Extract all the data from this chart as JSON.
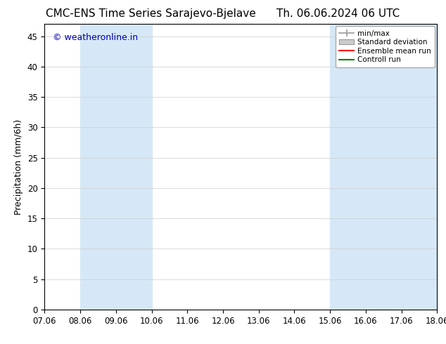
{
  "title_left": "CMC-ENS Time Series Sarajevo-Bjelave",
  "title_right": "Th. 06.06.2024 06 UTC",
  "ylabel": "Precipitation (mm/6h)",
  "watermark": "© weatheronline.in",
  "watermark_color": "#0000bb",
  "xlim_left": 7.06,
  "xlim_right": 18.06,
  "ylim_bottom": 0,
  "ylim_top": 47,
  "yticks": [
    0,
    5,
    10,
    15,
    20,
    25,
    30,
    35,
    40,
    45
  ],
  "xtick_labels": [
    "07.06",
    "08.06",
    "09.06",
    "10.06",
    "11.06",
    "12.06",
    "13.06",
    "14.06",
    "15.06",
    "16.06",
    "17.06",
    "18.06"
  ],
  "xtick_positions": [
    7.06,
    8.06,
    9.06,
    10.06,
    11.06,
    12.06,
    13.06,
    14.06,
    15.06,
    16.06,
    17.06,
    18.06
  ],
  "shaded_bands": [
    {
      "x_start": 8.06,
      "x_end": 10.06,
      "color": "#d6e8f7",
      "alpha": 1.0
    },
    {
      "x_start": 15.06,
      "x_end": 17.06,
      "color": "#d6e8f7",
      "alpha": 1.0
    },
    {
      "x_start": 17.06,
      "x_end": 18.06,
      "color": "#d6e8f7",
      "alpha": 1.0
    }
  ],
  "background_color": "#ffffff",
  "plot_bg_color": "#ffffff",
  "grid_color": "#cccccc",
  "title_fontsize": 11,
  "tick_fontsize": 8.5,
  "ylabel_fontsize": 9,
  "legend_entries": [
    "min/max",
    "Standard deviation",
    "Ensemble mean run",
    "Controll run"
  ],
  "legend_colors_line": [
    "#999999",
    "#cccccc",
    "#ff0000",
    "#008000"
  ],
  "minmax_color": "#999999",
  "std_facecolor": "#cccccc",
  "std_edgecolor": "#999999",
  "ens_color": "#ff0000",
  "ctrl_color": "#008000"
}
